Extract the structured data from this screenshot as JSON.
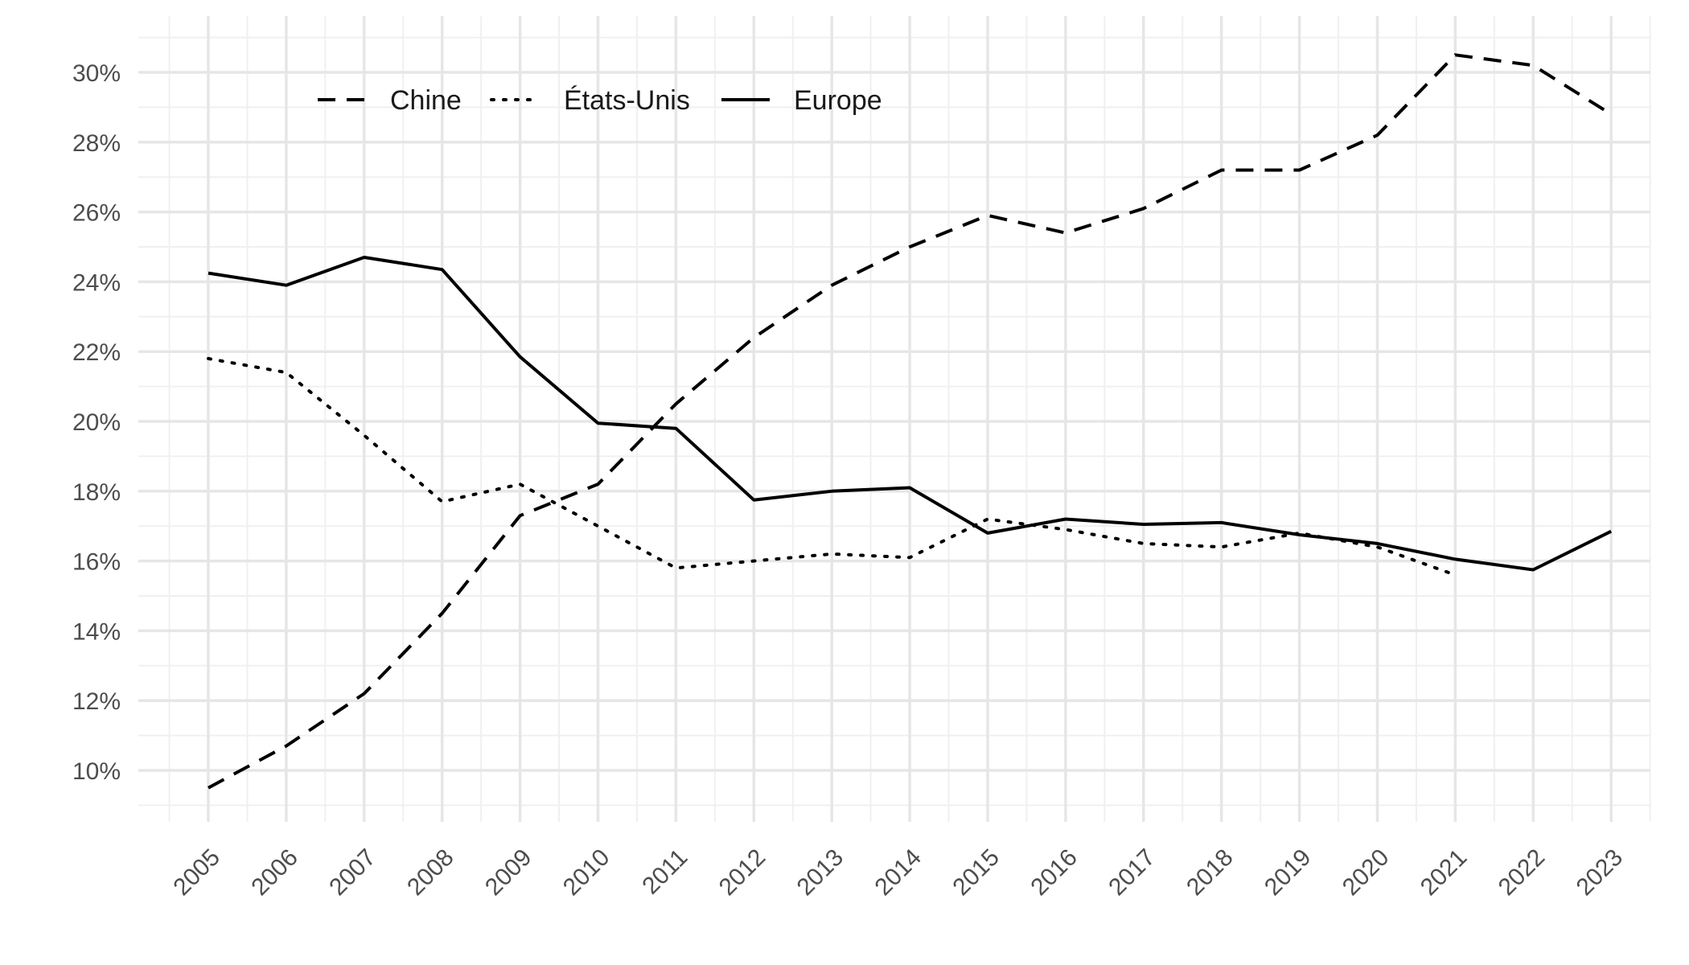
{
  "chart_data": {
    "type": "line",
    "title": "",
    "xlabel": "",
    "ylabel": "",
    "x": [
      "2005",
      "2006",
      "2007",
      "2008",
      "2009",
      "2010",
      "2011",
      "2012",
      "2013",
      "2014",
      "2015",
      "2016",
      "2017",
      "2018",
      "2019",
      "2020",
      "2021",
      "2022",
      "2023"
    ],
    "ylim": [
      8.5,
      31.5
    ],
    "y_ticks": [
      10,
      12,
      14,
      16,
      18,
      20,
      22,
      24,
      26,
      28,
      30
    ],
    "y_tick_labels": [
      "10%",
      "12%",
      "14%",
      "16%",
      "18%",
      "20%",
      "22%",
      "24%",
      "26%",
      "28%",
      "30%"
    ],
    "grid": true,
    "legend_position": "top-left",
    "series": [
      {
        "name": "Chine",
        "line_style": "dashed",
        "color": "#000000",
        "values": [
          9.5,
          10.7,
          12.2,
          14.5,
          17.3,
          18.2,
          20.5,
          22.4,
          23.9,
          25.0,
          25.9,
          25.4,
          26.1,
          27.2,
          27.2,
          28.2,
          30.5,
          30.2,
          28.8
        ]
      },
      {
        "name": "États-Unis",
        "line_style": "dotted",
        "color": "#000000",
        "values": [
          21.8,
          21.4,
          19.6,
          17.7,
          18.2,
          17.0,
          15.8,
          16.0,
          16.2,
          16.1,
          17.2,
          16.9,
          16.5,
          16.4,
          16.8,
          16.4,
          15.6,
          null,
          null
        ]
      },
      {
        "name": "Europe",
        "line_style": "solid",
        "color": "#000000",
        "values": [
          24.25,
          23.9,
          24.7,
          24.35,
          21.85,
          19.95,
          19.8,
          17.75,
          18.0,
          18.1,
          16.8,
          17.2,
          17.05,
          17.1,
          16.75,
          16.5,
          16.05,
          15.75,
          16.85
        ]
      }
    ]
  }
}
